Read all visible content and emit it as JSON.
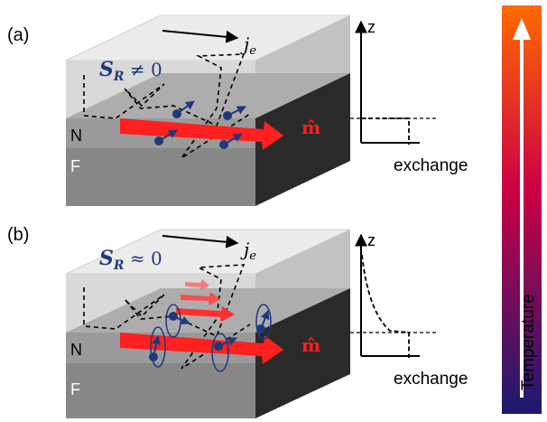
{
  "panels": [
    {
      "panel_label": "(a)",
      "current_symbol": "j",
      "current_subscript": "e",
      "spin_symbol": "S",
      "spin_subscript": "R",
      "spin_relation": "≠ 0",
      "magnetization_symbol": "m̂",
      "layer_top": "N",
      "layer_bottom": "F",
      "axis_z": "z",
      "axis_x": "exchange"
    },
    {
      "panel_label": "(b)",
      "current_symbol": "j",
      "current_subscript": "e",
      "spin_symbol": "S",
      "spin_subscript": "R",
      "spin_relation": "≈ 0",
      "magnetization_symbol": "m̂",
      "layer_top": "N",
      "layer_bottom": "F",
      "axis_z": "z",
      "axis_x": "exchange"
    }
  ],
  "temperature_bar": {
    "label": "Temperature",
    "color_top": "#ff6a00",
    "color_mid": "#cc0044",
    "color_bottom": "#1a1a70"
  },
  "colors": {
    "magnetization_arrow": "#ff2020",
    "electron": "#1f3a7a",
    "spin_label": "#1f3a7a",
    "m_label": "#ff2020"
  }
}
